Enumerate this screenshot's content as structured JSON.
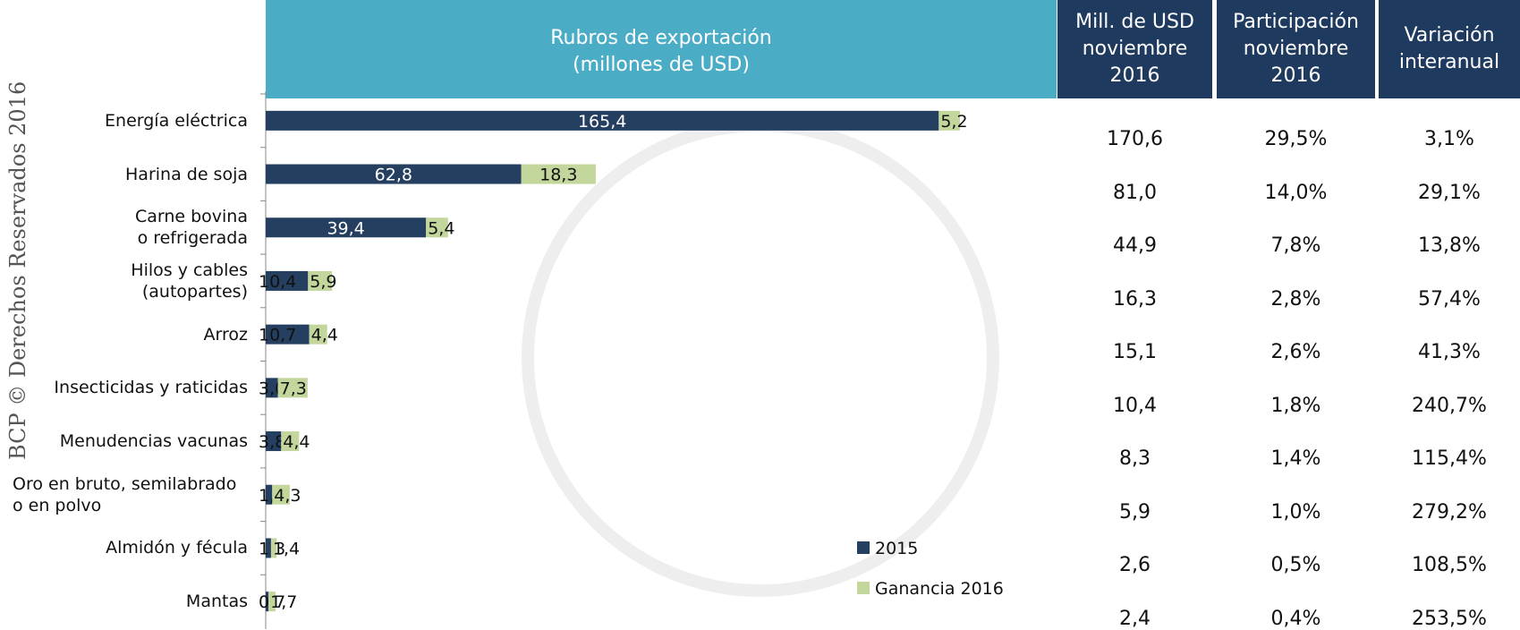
{
  "side_note": "BCP © Derechos Reservados 2016",
  "chart_data": {
    "type": "bar",
    "orientation": "horizontal",
    "stacked": true,
    "title": "Rubros de exportación\n(millones de USD)",
    "categories": [
      "Energía eléctrica",
      "Harina de soja",
      "Carne bovina\no refrigerada",
      "Hilos y cables\n(autopartes)",
      "Arroz",
      "Insecticidas y raticidas",
      "Menudencias vacunas",
      "Oro en bruto, semilabrado\no en polvo",
      "Almidón y fécula",
      "Mantas"
    ],
    "xlim": [
      0,
      175
    ],
    "series": [
      {
        "name": "2015",
        "color": "#243f60",
        "values": [
          165.4,
          62.8,
          39.4,
          10.4,
          10.7,
          3.0,
          3.8,
          1.6,
          1.3,
          0.7
        ],
        "value_labels": [
          "165,4",
          "62,8",
          "39,4",
          "10,4",
          "10,7",
          "3,0",
          "3,8",
          "1,6",
          "1,3",
          "0,7"
        ]
      },
      {
        "name": "Ganancia 2016",
        "color": "#c3d69b",
        "values": [
          5.2,
          18.3,
          5.4,
          5.9,
          4.4,
          7.3,
          4.4,
          4.3,
          1.4,
          1.7
        ],
        "value_labels": [
          "5,2",
          "18,3",
          "5,4",
          "5,9",
          "4,4",
          "7,3",
          "4,4",
          "4,3",
          "1,4",
          "1,7"
        ]
      }
    ]
  },
  "table": {
    "columns": [
      "Mill. de USD\nnoviembre\n2016",
      "Participación\nnoviembre\n2016",
      "Variación\ninteranual"
    ],
    "rows": [
      [
        "170,6",
        "29,5%",
        "3,1%"
      ],
      [
        "81,0",
        "14,0%",
        "29,1%"
      ],
      [
        "44,9",
        "7,8%",
        "13,8%"
      ],
      [
        "16,3",
        "2,8%",
        "57,4%"
      ],
      [
        "15,1",
        "2,6%",
        "41,3%"
      ],
      [
        "10,4",
        "1,8%",
        "240,7%"
      ],
      [
        "8,3",
        "1,4%",
        "115,4%"
      ],
      [
        "5,9",
        "1,0%",
        "279,2%"
      ],
      [
        "2,6",
        "0,5%",
        "108,5%"
      ],
      [
        "2,4",
        "0,4%",
        "253,5%"
      ]
    ]
  }
}
